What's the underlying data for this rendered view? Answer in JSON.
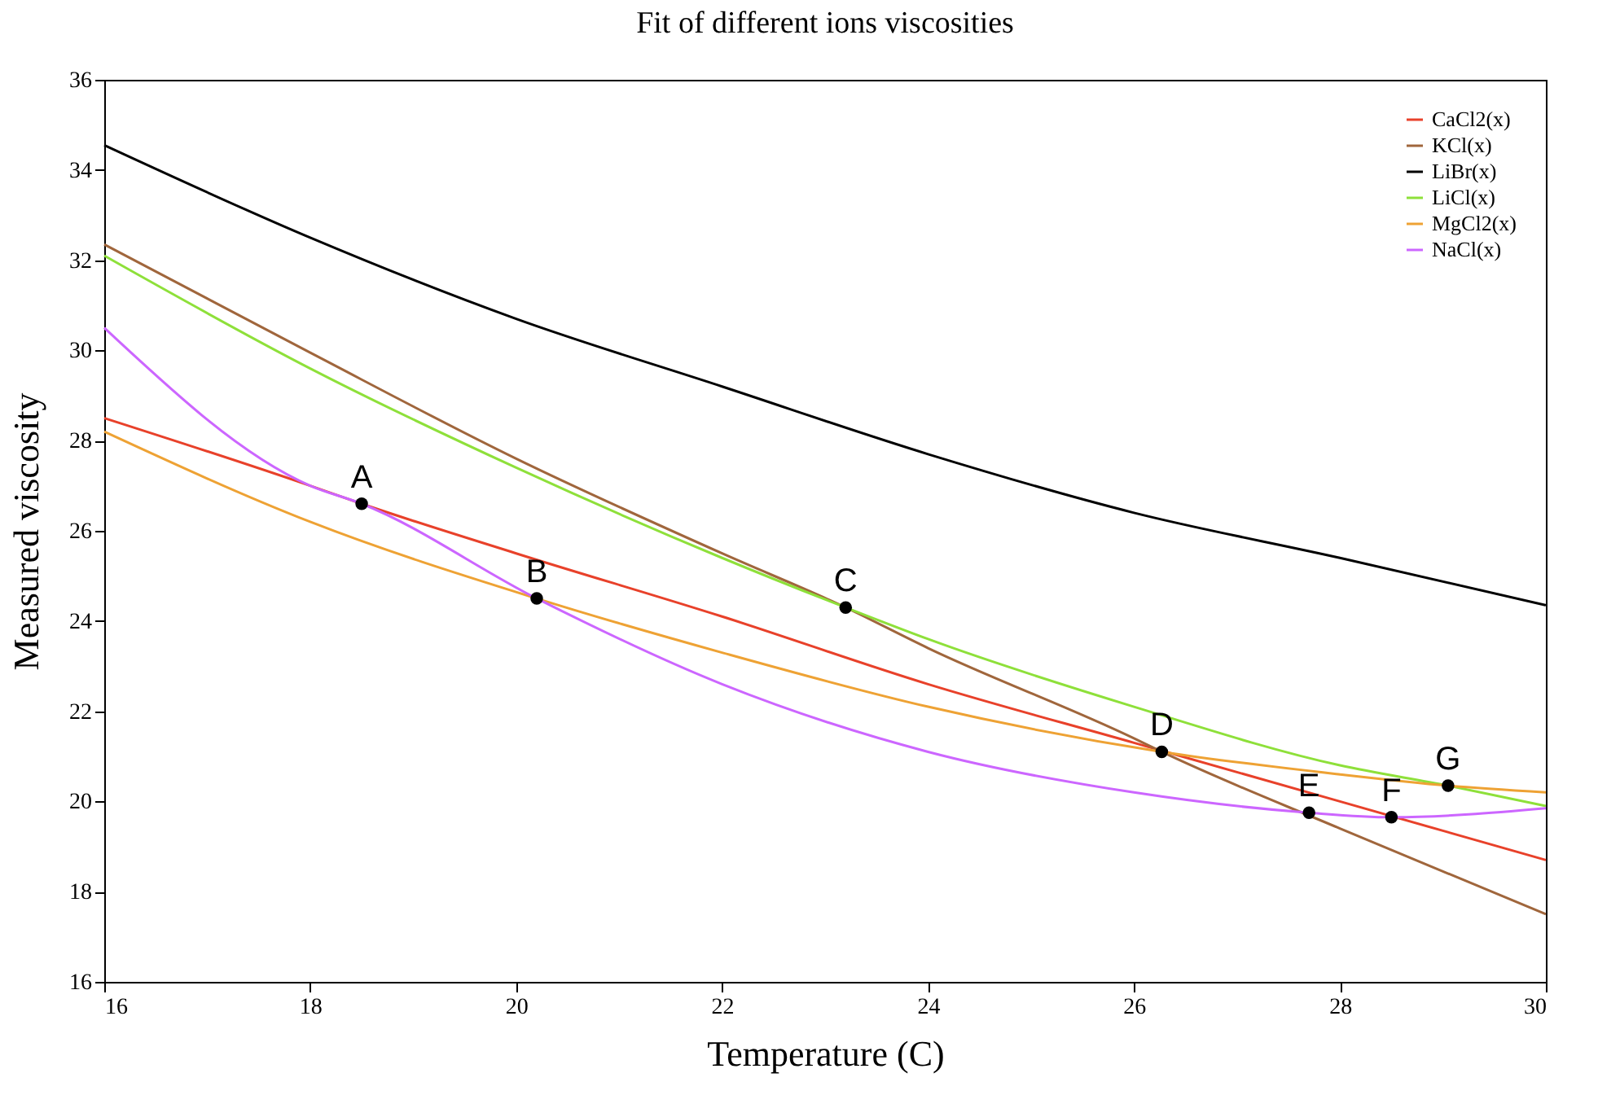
{
  "chart_data": {
    "type": "line",
    "title": "Fit of different ions viscosities",
    "xlabel": "Temperature (C)",
    "ylabel": "Measured viscosity",
    "xlim": [
      16,
      30
    ],
    "xticks": [
      16,
      18,
      20,
      22,
      24,
      26,
      28,
      30
    ],
    "ylim": [
      16,
      36
    ],
    "yticks": [
      16,
      18,
      20,
      22,
      24,
      26,
      28,
      30,
      32,
      34,
      36
    ],
    "grid": false,
    "legend": "top right",
    "marker": "none",
    "line_style": "solid",
    "series": [
      {
        "name": "CaCl2(x)",
        "color": "#e8412a",
        "x": [
          16,
          18,
          18.5,
          20,
          22,
          24,
          26,
          28,
          30
        ],
        "values": [
          28.5,
          27.0,
          26.6,
          25.5,
          24.1,
          22.6,
          21.3,
          20.0,
          18.7
        ]
      },
      {
        "name": "KCl(x)",
        "color": "#a0663c",
        "x": [
          16,
          18,
          20,
          22,
          23.2,
          24,
          26,
          26.27,
          28,
          30
        ],
        "values": [
          32.35,
          29.95,
          27.6,
          25.5,
          24.3,
          23.4,
          21.4,
          21.1,
          19.4,
          17.5
        ]
      },
      {
        "name": "LiBr(x)",
        "color": "#000000",
        "x": [
          16,
          18,
          20,
          22,
          24,
          26,
          28,
          30
        ],
        "values": [
          34.55,
          32.5,
          30.7,
          29.2,
          27.7,
          26.4,
          25.4,
          24.35
        ]
      },
      {
        "name": "LiCl(x)",
        "color": "#8ee03a",
        "x": [
          16,
          18,
          20,
          22,
          23.2,
          24,
          26,
          28,
          29.05,
          30
        ],
        "values": [
          32.1,
          29.6,
          27.4,
          25.4,
          24.3,
          23.6,
          22.1,
          20.8,
          20.35,
          19.9
        ]
      },
      {
        "name": "MgCl2(x)",
        "color": "#eea234",
        "x": [
          16,
          18,
          20.2,
          22,
          24,
          26.27,
          28,
          29.05,
          30
        ],
        "values": [
          28.2,
          26.2,
          24.5,
          23.3,
          22.1,
          21.1,
          20.6,
          20.35,
          20.2
        ]
      },
      {
        "name": "NaCl(x)",
        "color": "#cc66ff",
        "x": [
          16,
          18,
          18.5,
          20.2,
          22,
          24,
          26,
          27.7,
          28.5,
          30
        ],
        "values": [
          30.5,
          27.0,
          26.6,
          24.5,
          22.6,
          21.1,
          20.2,
          19.75,
          19.65,
          19.85
        ]
      },
      {
        "type": "scatter",
        "color": "#000000",
        "marker": "circle",
        "x": [
          18.5,
          20.2,
          23.2,
          26.27,
          27.7,
          28.5,
          29.05
        ],
        "values": [
          26.6,
          24.5,
          24.3,
          21.1,
          19.75,
          19.65,
          20.35
        ]
      }
    ],
    "annotations": [
      {
        "text": "A",
        "x": 18.5,
        "y": 26.6
      },
      {
        "text": "B",
        "x": 20.2,
        "y": 24.5
      },
      {
        "text": "C",
        "x": 23.2,
        "y": 24.3
      },
      {
        "text": "D",
        "x": 26.27,
        "y": 21.1
      },
      {
        "text": "E",
        "x": 27.7,
        "y": 19.75
      },
      {
        "text": "F",
        "x": 28.5,
        "y": 19.65
      },
      {
        "text": "G",
        "x": 29.05,
        "y": 20.35
      }
    ]
  }
}
